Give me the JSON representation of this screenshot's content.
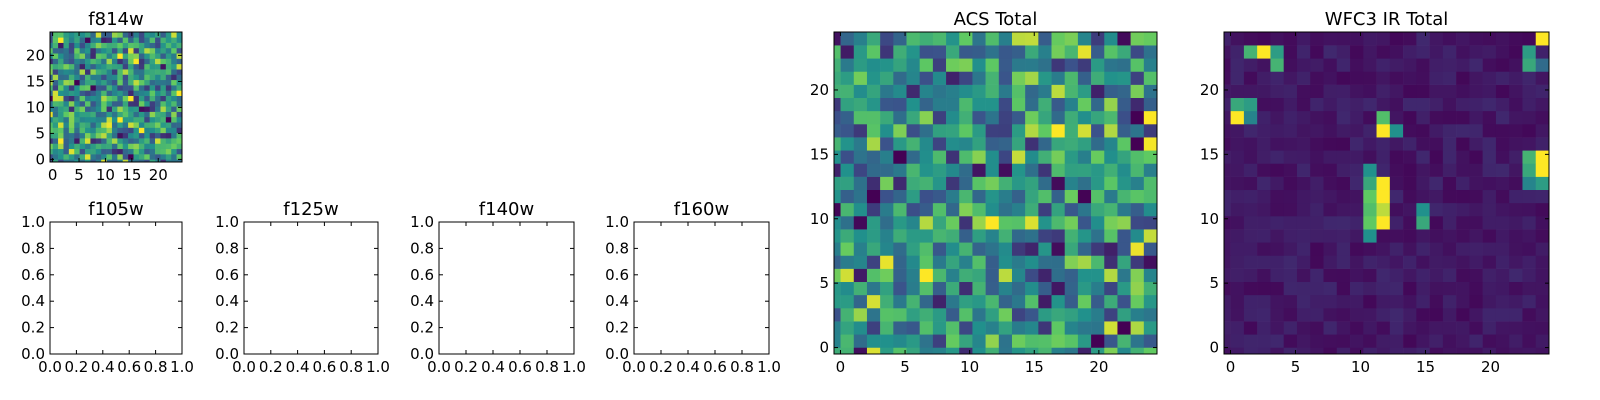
{
  "colormap": [
    "#440154",
    "#3b528b",
    "#21918c",
    "#5ec962",
    "#fde725"
  ],
  "chart_data": [
    {
      "id": "f814w",
      "type": "heatmap",
      "title": "f814w",
      "grid": [
        25,
        25
      ],
      "vmin": 0,
      "vmax": 1,
      "seed": 11,
      "distribution": "noise",
      "x_ticks": [
        "0",
        "5",
        "10",
        "15",
        "20"
      ],
      "y_ticks": [
        "0",
        "5",
        "10",
        "15",
        "20"
      ]
    },
    {
      "id": "f105w",
      "type": "empty",
      "title": "f105w",
      "xlim": [
        0,
        1
      ],
      "ylim": [
        0,
        1
      ],
      "x_ticks": [
        "0.0",
        "0.2",
        "0.4",
        "0.6",
        "0.8",
        "1.0"
      ],
      "y_ticks": [
        "0.0",
        "0.2",
        "0.4",
        "0.6",
        "0.8",
        "1.0"
      ]
    },
    {
      "id": "f125w",
      "type": "empty",
      "title": "f125w",
      "xlim": [
        0,
        1
      ],
      "ylim": [
        0,
        1
      ],
      "x_ticks": [
        "0.0",
        "0.2",
        "0.4",
        "0.6",
        "0.8",
        "1.0"
      ],
      "y_ticks": [
        "0.0",
        "0.2",
        "0.4",
        "0.6",
        "0.8",
        "1.0"
      ]
    },
    {
      "id": "f140w",
      "type": "empty",
      "title": "f140w",
      "xlim": [
        0,
        1
      ],
      "ylim": [
        0,
        1
      ],
      "x_ticks": [
        "0.0",
        "0.2",
        "0.4",
        "0.6",
        "0.8",
        "1.0"
      ],
      "y_ticks": [
        "0.0",
        "0.2",
        "0.4",
        "0.6",
        "0.8",
        "1.0"
      ]
    },
    {
      "id": "f160w",
      "type": "empty",
      "title": "f160w",
      "xlim": [
        0,
        1
      ],
      "ylim": [
        0,
        1
      ],
      "x_ticks": [
        "0.0",
        "0.2",
        "0.4",
        "0.6",
        "0.8",
        "1.0"
      ],
      "y_ticks": [
        "0.0",
        "0.2",
        "0.4",
        "0.6",
        "0.8",
        "1.0"
      ]
    },
    {
      "id": "acs-total",
      "type": "heatmap",
      "title": "ACS Total",
      "grid": [
        25,
        25
      ],
      "vmin": 0,
      "vmax": 1,
      "seed": 7,
      "distribution": "noise",
      "x_ticks": [
        "0",
        "5",
        "10",
        "15",
        "20"
      ],
      "y_ticks": [
        "0",
        "5",
        "10",
        "15",
        "20"
      ]
    },
    {
      "id": "wfc3-ir-total",
      "type": "heatmap",
      "title": "WFC3 IR Total",
      "grid": [
        25,
        25
      ],
      "vmin": 0,
      "vmax": 1,
      "seed": 3,
      "distribution": "sparse",
      "hot_pixels": [
        {
          "x": 24,
          "y": 24,
          "v": 1.0
        },
        {
          "x": 3,
          "y": 23,
          "v": 1.0
        },
        {
          "x": 2,
          "y": 23,
          "v": 0.65
        },
        {
          "x": 4,
          "y": 23,
          "v": 0.55
        },
        {
          "x": 4,
          "y": 22,
          "v": 0.65
        },
        {
          "x": 23,
          "y": 23,
          "v": 0.55
        },
        {
          "x": 23,
          "y": 22,
          "v": 0.6
        },
        {
          "x": 24,
          "y": 22,
          "v": 0.35
        },
        {
          "x": 1,
          "y": 19,
          "v": 0.6
        },
        {
          "x": 2,
          "y": 19,
          "v": 0.55
        },
        {
          "x": 1,
          "y": 18,
          "v": 1.0
        },
        {
          "x": 2,
          "y": 18,
          "v": 0.45
        },
        {
          "x": 12,
          "y": 18,
          "v": 0.7
        },
        {
          "x": 12,
          "y": 17,
          "v": 1.0
        },
        {
          "x": 13,
          "y": 17,
          "v": 0.5
        },
        {
          "x": 23,
          "y": 15,
          "v": 0.65
        },
        {
          "x": 24,
          "y": 15,
          "v": 1.0
        },
        {
          "x": 23,
          "y": 14,
          "v": 0.6
        },
        {
          "x": 24,
          "y": 14,
          "v": 1.0
        },
        {
          "x": 23,
          "y": 13,
          "v": 0.45
        },
        {
          "x": 24,
          "y": 13,
          "v": 0.55
        },
        {
          "x": 11,
          "y": 14,
          "v": 0.5
        },
        {
          "x": 11,
          "y": 13,
          "v": 0.6
        },
        {
          "x": 12,
          "y": 13,
          "v": 1.0
        },
        {
          "x": 11,
          "y": 12,
          "v": 0.75
        },
        {
          "x": 12,
          "y": 12,
          "v": 1.0
        },
        {
          "x": 11,
          "y": 11,
          "v": 0.7
        },
        {
          "x": 12,
          "y": 11,
          "v": 0.9
        },
        {
          "x": 11,
          "y": 10,
          "v": 0.75
        },
        {
          "x": 12,
          "y": 10,
          "v": 1.0
        },
        {
          "x": 11,
          "y": 9,
          "v": 0.5
        },
        {
          "x": 15,
          "y": 11,
          "v": 0.5
        },
        {
          "x": 15,
          "y": 10,
          "v": 0.6
        }
      ],
      "x_ticks": [
        "0",
        "5",
        "10",
        "15",
        "20"
      ],
      "y_ticks": [
        "0",
        "5",
        "10",
        "15",
        "20"
      ]
    }
  ]
}
